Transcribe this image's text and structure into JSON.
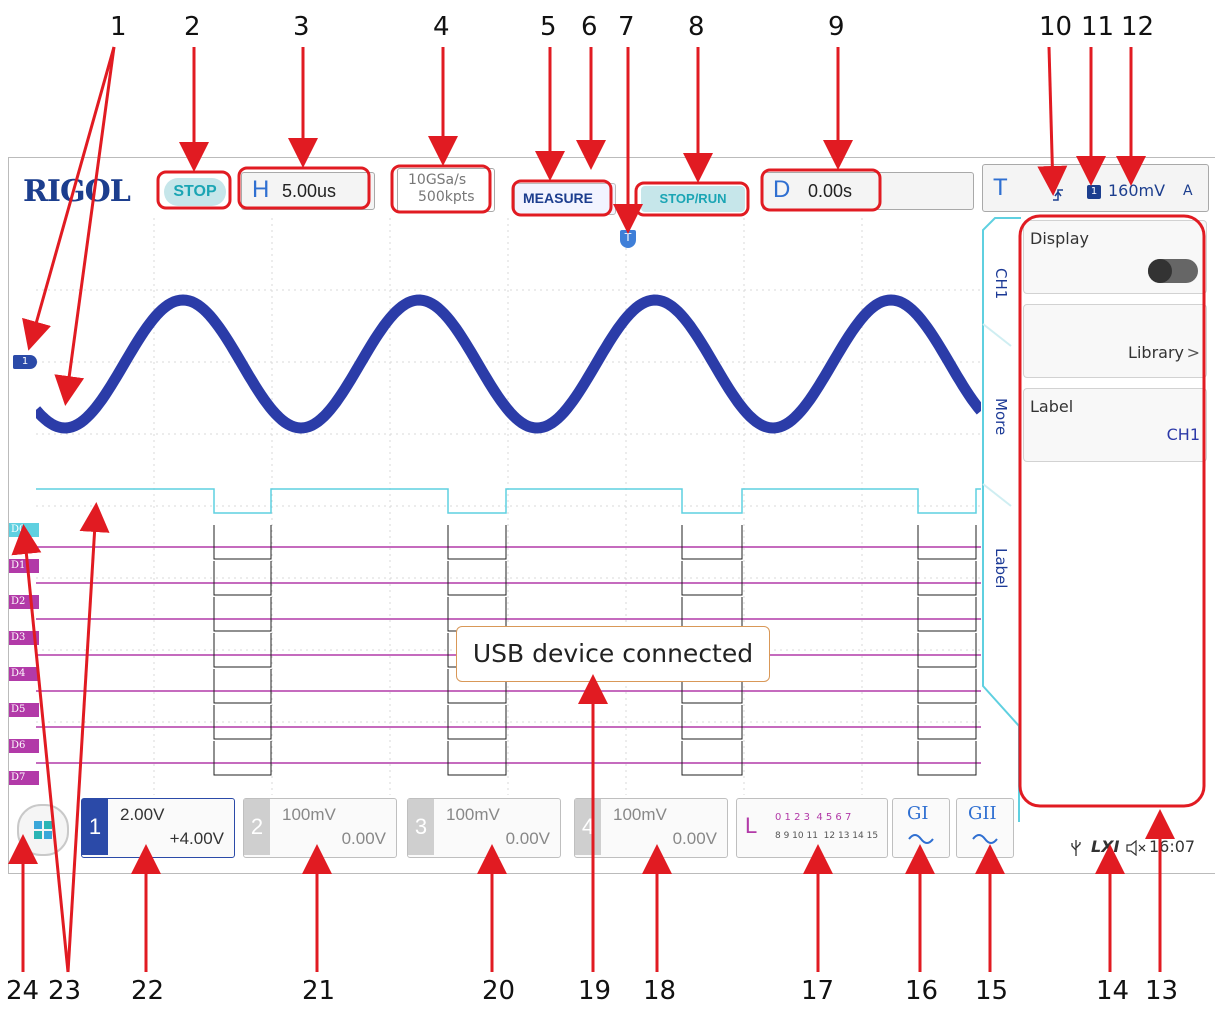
{
  "callouts_top": [
    "1",
    "2",
    "3",
    "4",
    "5",
    "6",
    "7",
    "8",
    "9",
    "10",
    "11",
    "12"
  ],
  "callouts_bottom": [
    "24",
    "23",
    "22",
    "21",
    "20",
    "19",
    "18",
    "17",
    "16",
    "15",
    "14",
    "13"
  ],
  "header": {
    "logo": "RIGOL",
    "run_state": "STOP",
    "horizontal_letter": "H",
    "timebase": "5.00us",
    "sample_rate": "10GSa/s",
    "memory_depth": "500kpts",
    "measure_label": "MEASURE",
    "stop_run_label": "STOP/RUN",
    "delay_letter": "D",
    "delay_value": "0.00s",
    "trigger_letter": "T",
    "trigger_source": "1",
    "trigger_level": "160mV",
    "trigger_mode": "A"
  },
  "side_tabs": [
    "CH1",
    "More",
    "Label"
  ],
  "menu": {
    "display_label": "Display",
    "library_label": "Library",
    "label_label": "Label",
    "label_value": "CH1"
  },
  "digital_channels": [
    "D0",
    "D1",
    "D2",
    "D3",
    "D4",
    "D5",
    "D6",
    "D7"
  ],
  "trigger_marker": "T",
  "ch1_marker": "1",
  "toast": "USB device connected",
  "channels": [
    {
      "num": "1",
      "scale": "2.00V",
      "offset": "+4.00V",
      "color": "#2b4aa8"
    },
    {
      "num": "2",
      "scale": "100mV",
      "offset": "0.00V",
      "color": "#cfcfcf"
    },
    {
      "num": "3",
      "scale": "100mV",
      "offset": "0.00V",
      "color": "#cfcfcf"
    },
    {
      "num": "4",
      "scale": "100mV",
      "offset": "0.00V",
      "color": "#cfcfcf"
    }
  ],
  "logic": {
    "letter": "L",
    "row1": "0 1 2 3  4 5 6 7",
    "row2": "8 9 10 11  12 13 14 15"
  },
  "generators": [
    {
      "label": "GI"
    },
    {
      "label": "GII"
    }
  ],
  "status": {
    "lxi": "LXI",
    "time": "16:07"
  },
  "colors": {
    "ch1": "#2b3ca8",
    "digital_d0": "#5fd0e0",
    "digital_bus": "#b23aa8",
    "annotation": "#e11b22"
  }
}
